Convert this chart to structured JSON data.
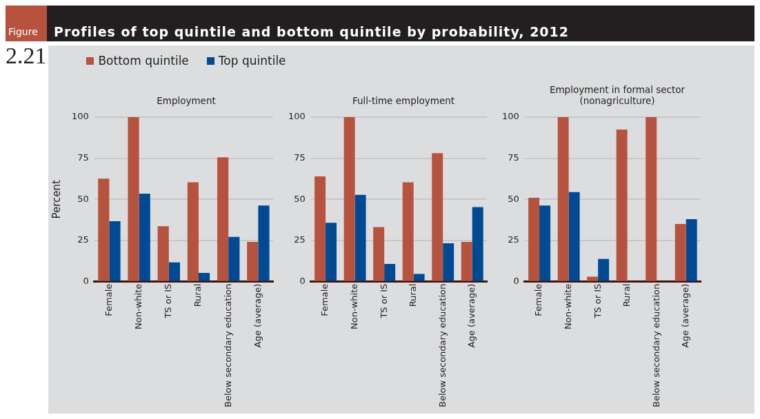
{
  "chart_data": [
    {
      "type": "bar",
      "title": "Profiles of top quintile and bottom quintile by probability, 2012",
      "subtitle": "Employment",
      "ylabel": "Percent",
      "annotations": [
        "Figure",
        "2.21"
      ],
      "categories": [
        "Female",
        "Non-white",
        "TS or IS",
        "Rural",
        "Below secondary education",
        "Age (average)"
      ],
      "series": [
        {
          "name": "Bottom quintile",
          "color": "#b5533f",
          "values": [
            62.6,
            100,
            33.7,
            60.4,
            75.5,
            24.2
          ]
        },
        {
          "name": "Top quintile",
          "color": "#004a93",
          "values": [
            36.7,
            53.5,
            11.7,
            5.3,
            27.2,
            46.2
          ]
        }
      ],
      "ylim": [
        0,
        100
      ],
      "yticks": [
        0,
        25,
        50,
        75,
        100
      ],
      "grid": "y",
      "legend": "top"
    },
    {
      "type": "bar",
      "subtitle": "Full-time employment",
      "categories": [
        "Female",
        "Non-white",
        "TS or IS",
        "Rural",
        "Below secondary education",
        "Age (average)"
      ],
      "series": [
        {
          "color": "#b5533f",
          "values": [
            63.9,
            100,
            33.2,
            60.4,
            78.1,
            24.2
          ]
        },
        {
          "color": "#004a93",
          "values": [
            35.8,
            52.7,
            10.8,
            4.7,
            23.3,
            45.3
          ]
        }
      ],
      "ylim": [
        0,
        100
      ],
      "yticks": [
        0,
        25,
        50,
        75,
        100
      ],
      "grid": "y"
    },
    {
      "type": "bar",
      "subtitle": "Employment in formal sector (nonagriculture)",
      "categories": [
        "Female",
        "Non-white",
        "TS or IS",
        "Rural",
        "Below secondary education",
        "Age (average)"
      ],
      "series": [
        {
          "color": "#b5533f",
          "values": [
            50.9,
            100,
            3.0,
            92.4,
            100,
            35.0
          ]
        },
        {
          "color": "#004a93",
          "values": [
            46.2,
            54.4,
            13.8,
            null,
            0,
            38.0
          ]
        }
      ],
      "ylim": [
        0,
        100
      ],
      "yticks": [
        0,
        25,
        50,
        75,
        100
      ],
      "grid": "y"
    }
  ]
}
